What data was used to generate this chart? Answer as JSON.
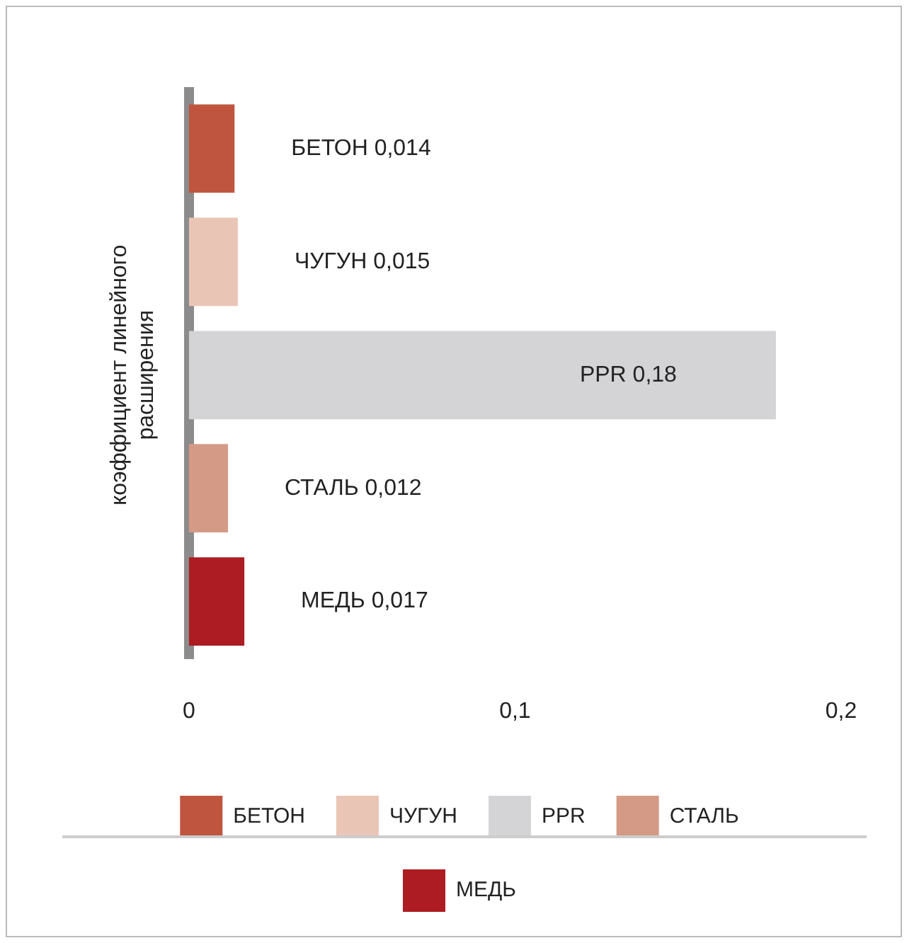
{
  "chart_data": {
    "type": "bar",
    "orientation": "horizontal",
    "ylabel": "коэффициент линейного расширения",
    "categories": [
      null,
      null,
      null,
      null,
      null
    ],
    "series": [
      {
        "name": "БЕТОН",
        "color": "#c0553f",
        "values": [
          0.014,
          null,
          null,
          null,
          null
        ],
        "value_labels": [
          "БЕТОН 0,014",
          null,
          null,
          null,
          null
        ]
      },
      {
        "name": "ЧУГУН",
        "color": "#e9c5b5",
        "values": [
          null,
          0.015,
          null,
          null,
          null
        ],
        "value_labels": [
          null,
          "ЧУГУН 0,015",
          null,
          null,
          null
        ]
      },
      {
        "name": "PPR",
        "color": "#d4d4d6",
        "values": [
          null,
          null,
          0.18,
          null,
          null
        ],
        "value_labels": [
          null,
          null,
          "PPR 0,18",
          null,
          null
        ]
      },
      {
        "name": "СТАЛЬ",
        "color": "#d59a86",
        "values": [
          null,
          null,
          null,
          0.012,
          null
        ],
        "value_labels": [
          null,
          null,
          null,
          "СТАЛЬ 0,012",
          null
        ]
      },
      {
        "name": "МЕДЬ",
        "color": "#ac1c22",
        "values": [
          null,
          null,
          null,
          null,
          0.017
        ],
        "value_labels": [
          null,
          null,
          null,
          null,
          "МЕДЬ 0,017"
        ]
      }
    ],
    "xlim": [
      0,
      0.2
    ],
    "xticks": [
      0,
      {
        "value": 0.1,
        "label": "0,1"
      },
      {
        "value": 0.2,
        "label": "0,2"
      }
    ],
    "tick_labels": "x",
    "grid": false,
    "legend": "bottom"
  }
}
